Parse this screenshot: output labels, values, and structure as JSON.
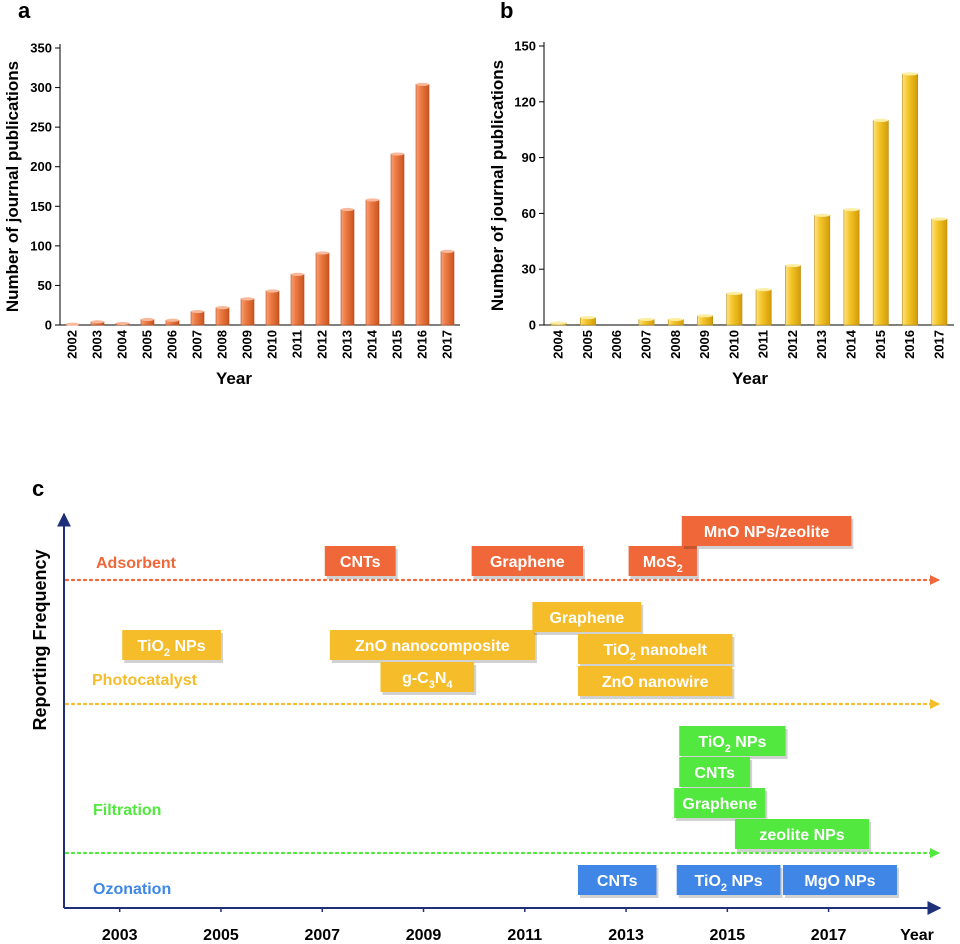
{
  "colors": {
    "bar_a": "#e8703a",
    "bar_b": "#f3c21e",
    "adsorbent": "#f0683a",
    "photocatalyst": "#f6bd2a",
    "filtration": "#52e83f",
    "ozonation": "#3f86e6",
    "axis_c": "#1f2f7a"
  },
  "chart_data": [
    {
      "panel": "a",
      "type": "bar",
      "xlabel": "Year",
      "ylabel": "Number of journal publications",
      "ylim": [
        0,
        350
      ],
      "yticks": [
        0,
        50,
        100,
        150,
        200,
        250,
        300,
        350
      ],
      "categories": [
        "2002",
        "2003",
        "2004",
        "2005",
        "2006",
        "2007",
        "2008",
        "2009",
        "2010",
        "2011",
        "2012",
        "2013",
        "2014",
        "2015",
        "2016",
        "2017"
      ],
      "values": [
        1,
        4,
        2,
        7,
        6,
        17,
        22,
        33,
        43,
        64,
        91,
        146,
        158,
        216,
        304,
        93
      ]
    },
    {
      "panel": "b",
      "type": "bar",
      "xlabel": "Year",
      "ylabel": "Number of journal publications",
      "ylim": [
        0,
        150
      ],
      "yticks": [
        0,
        30,
        60,
        90,
        120,
        150
      ],
      "categories": [
        "2004",
        "2005",
        "2006",
        "2007",
        "2008",
        "2009",
        "2010",
        "2011",
        "2012",
        "2013",
        "2014",
        "2015",
        "2016",
        "2017"
      ],
      "values": [
        1,
        4,
        0,
        3,
        3,
        5,
        17,
        19,
        32,
        59,
        62,
        110,
        135,
        57
      ]
    },
    {
      "panel": "c",
      "type": "timeline",
      "xlabel": "Year",
      "ylabel": "Reporting Frequency",
      "xlim": [
        2001.9,
        2019.2
      ],
      "xticks": [
        2003,
        2005,
        2007,
        2009,
        2011,
        2013,
        2015,
        2017
      ],
      "categories": [
        {
          "key": "adsorbent",
          "label": "Adsorbent"
        },
        {
          "key": "photocatalyst",
          "label": "Photocatalyst"
        },
        {
          "key": "filtration",
          "label": "Filtration"
        },
        {
          "key": "ozonation",
          "label": "Ozonation"
        }
      ],
      "items": [
        {
          "category": "adsorbent",
          "label": "CNTs",
          "start": 2007.05,
          "end": 2008.45
        },
        {
          "category": "adsorbent",
          "label": "Graphene",
          "start": 2009.95,
          "end": 2012.15
        },
        {
          "category": "adsorbent",
          "label": "MoS",
          "sub": "2",
          "start": 2013.05,
          "end": 2014.4
        },
        {
          "category": "adsorbent",
          "label": "MnO NPs/zeolite",
          "start": 2014.1,
          "end": 2017.45
        },
        {
          "category": "photocatalyst",
          "label": "TiO",
          "sub": "2",
          "after": " NPs",
          "start": 2003.05,
          "end": 2005.0
        },
        {
          "category": "photocatalyst",
          "label": "ZnO nanocomposite",
          "start": 2007.15,
          "end": 2011.2
        },
        {
          "category": "photocatalyst",
          "label": "Graphene",
          "start": 2011.15,
          "end": 2013.3
        },
        {
          "category": "photocatalyst",
          "label": "g-C",
          "sub": "3",
          "after": "N",
          "sub2": "4",
          "start": 2008.15,
          "end": 2010.0
        },
        {
          "category": "photocatalyst",
          "label": "TiO",
          "sub": "2",
          "after": " nanobelt",
          "start": 2012.05,
          "end": 2015.1
        },
        {
          "category": "photocatalyst",
          "label": "ZnO nanowire",
          "start": 2012.05,
          "end": 2015.1
        },
        {
          "category": "filtration",
          "label": "TiO",
          "sub": "2",
          "after": " NPs",
          "start": 2014.05,
          "end": 2016.15
        },
        {
          "category": "filtration",
          "label": "CNTs",
          "start": 2014.05,
          "end": 2015.45
        },
        {
          "category": "filtration",
          "label": "Graphene",
          "start": 2013.95,
          "end": 2015.75
        },
        {
          "category": "filtration",
          "label": "zeolite NPs",
          "start": 2015.15,
          "end": 2017.8
        },
        {
          "category": "ozonation",
          "label": "CNTs",
          "start": 2012.05,
          "end": 2013.6
        },
        {
          "category": "ozonation",
          "label": "TiO",
          "sub": "2",
          "after": " NPs",
          "start": 2014.0,
          "end": 2016.05
        },
        {
          "category": "ozonation",
          "label": "MgO NPs",
          "start": 2016.1,
          "end": 2018.35
        }
      ]
    }
  ]
}
